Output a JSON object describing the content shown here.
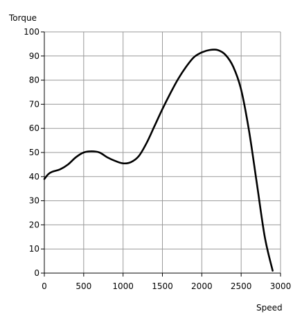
{
  "chart_data": {
    "type": "line",
    "title": "",
    "xlabel": "Speed",
    "ylabel": "Torque",
    "xlim": [
      0,
      3000
    ],
    "ylim": [
      0,
      100
    ],
    "x_ticks": [
      0,
      500,
      1000,
      1500,
      2000,
      2500,
      3000
    ],
    "y_ticks": [
      0,
      10,
      20,
      30,
      40,
      50,
      60,
      70,
      80,
      90,
      100
    ],
    "grid": true,
    "legend": "none",
    "line_color": "#000000",
    "grid_color": "#999999",
    "series": [
      {
        "x": [
          0,
          50,
          100,
          200,
          300,
          400,
          500,
          600,
          700,
          800,
          900,
          1000,
          1100,
          1200,
          1300,
          1400,
          1500,
          1600,
          1700,
          1800,
          1900,
          2000,
          2100,
          2200,
          2300,
          2400,
          2500,
          2600,
          2700,
          2800,
          2900
        ],
        "y": [
          39,
          41,
          42,
          43,
          45,
          48,
          50,
          50.5,
          50,
          48,
          46.5,
          45.5,
          46,
          48.5,
          54,
          61,
          68,
          74.5,
          80.5,
          85.5,
          89.5,
          91.5,
          92.5,
          92.5,
          90.5,
          85.5,
          76,
          59,
          37,
          15,
          1
        ]
      }
    ]
  }
}
